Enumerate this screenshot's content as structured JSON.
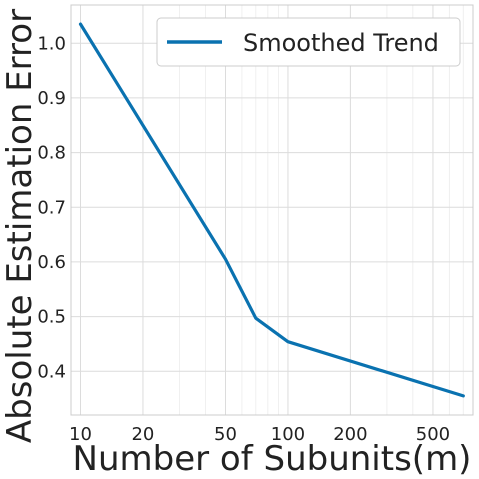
{
  "chart_data": {
    "type": "line",
    "xscale": "log",
    "xlabel": "Number of Subunits(m)",
    "ylabel": "Absolute Estimation Error",
    "xlim": [
      9,
      780
    ],
    "ylim": [
      0.32,
      1.07
    ],
    "xticks": [
      10,
      20,
      50,
      100,
      200,
      500
    ],
    "xtick_labels": [
      "10",
      "20",
      "50",
      "100",
      "200",
      "500"
    ],
    "yticks": [
      0.4,
      0.5,
      0.6,
      0.7,
      0.8,
      0.9,
      1.0
    ],
    "ytick_labels": [
      "0.4",
      "0.5",
      "0.6",
      "0.7",
      "0.8",
      "0.9",
      "1.0"
    ],
    "grid": true,
    "legend_position": "top-right",
    "series": [
      {
        "name": "Smoothed Trend",
        "color": "#0a72b0",
        "x": [
          10,
          50,
          70,
          100,
          700
        ],
        "y": [
          1.035,
          0.605,
          0.497,
          0.454,
          0.355
        ]
      }
    ]
  }
}
